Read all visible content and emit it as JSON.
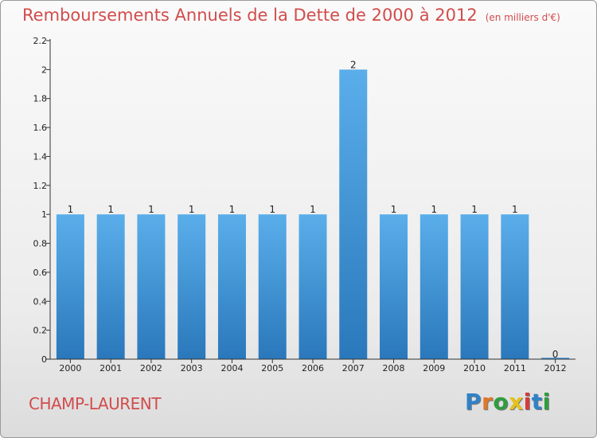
{
  "header": {
    "title": "Remboursements Annuels de la Dette de 2000 à 2012",
    "unit": "(en milliers d'€)"
  },
  "footer": {
    "city": "CHAMP-LAURENT",
    "logo_letters": [
      "P",
      "r",
      "o",
      "x",
      "i",
      "t",
      "i"
    ],
    "logo_colors": [
      "#2f82c8",
      "#e0782a",
      "#2e9e3f",
      "#e4c21c",
      "#d63a3a",
      "#2f82c8",
      "#2e9e3f"
    ]
  },
  "chart_data": {
    "type": "bar",
    "categories": [
      "2000",
      "2001",
      "2002",
      "2003",
      "2004",
      "2005",
      "2006",
      "2007",
      "2008",
      "2009",
      "2010",
      "2011",
      "2012"
    ],
    "values": [
      1,
      1,
      1,
      1,
      1,
      1,
      1,
      2,
      1,
      1,
      1,
      1,
      0
    ],
    "data_labels": [
      "1",
      "1",
      "1",
      "1",
      "1",
      "1",
      "1",
      "2",
      "1",
      "1",
      "1",
      "1",
      "0"
    ],
    "yticks": [
      0,
      0.2,
      0.4,
      0.6,
      0.8,
      1,
      1.2,
      1.4,
      1.6,
      1.8,
      2,
      2.2
    ],
    "ytick_labels": [
      "0",
      "0.2",
      "0.4",
      "0.6",
      "0.8",
      "1",
      "1.2",
      "1.4",
      "1.6",
      "1.8",
      "2",
      "2.2"
    ],
    "ylim": [
      0,
      2.2
    ],
    "bar_color": "#3a8fd6",
    "grid": false
  }
}
